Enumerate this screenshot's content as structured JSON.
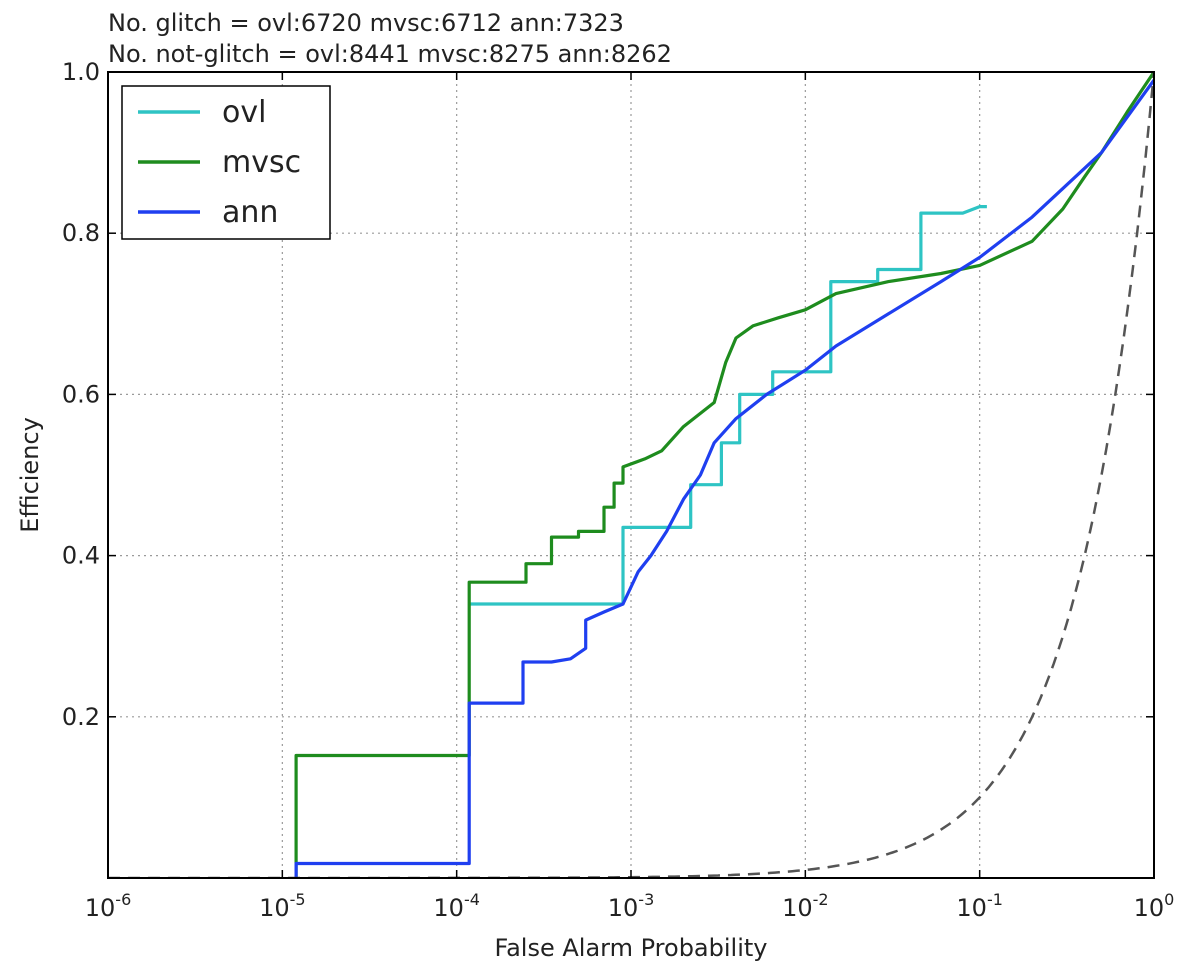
{
  "chart_data": {
    "type": "line",
    "title_lines": [
      "No. glitch = ovl:6720 mvsc:6712 ann:7323",
      "No. not-glitch = ovl:8441 mvsc:8275 ann:8262"
    ],
    "xlabel": "False Alarm Probability",
    "ylabel": "Efficiency",
    "xscale": "log",
    "xlim": [
      1e-06,
      1
    ],
    "ylim": [
      0,
      1
    ],
    "grid": true,
    "legend_position": "top-left",
    "x_ticks": [
      {
        "base": "10",
        "exp": "-6",
        "value": 1e-06
      },
      {
        "base": "10",
        "exp": "-5",
        "value": 1e-05
      },
      {
        "base": "10",
        "exp": "-4",
        "value": 0.0001
      },
      {
        "base": "10",
        "exp": "-3",
        "value": 0.001
      },
      {
        "base": "10",
        "exp": "-2",
        "value": 0.01
      },
      {
        "base": "10",
        "exp": "-1",
        "value": 0.1
      },
      {
        "base": "10",
        "exp": "0",
        "value": 1
      }
    ],
    "y_ticks": [
      {
        "label": "0.2",
        "value": 0.2
      },
      {
        "label": "0.4",
        "value": 0.4
      },
      {
        "label": "0.6",
        "value": 0.6
      },
      {
        "label": "0.8",
        "value": 0.8
      },
      {
        "label": "1.0",
        "value": 1.0
      }
    ],
    "series": [
      {
        "name": "ovl",
        "color": "#2ec4c4",
        "step": true,
        "points": [
          [
            0.000118,
            0.34
          ],
          [
            0.0009,
            0.34
          ],
          [
            0.0009,
            0.435
          ],
          [
            0.0022,
            0.435
          ],
          [
            0.0022,
            0.488
          ],
          [
            0.0033,
            0.488
          ],
          [
            0.0033,
            0.54
          ],
          [
            0.0042,
            0.54
          ],
          [
            0.0042,
            0.6
          ],
          [
            0.0065,
            0.6
          ],
          [
            0.0065,
            0.628
          ],
          [
            0.014,
            0.628
          ],
          [
            0.014,
            0.74
          ],
          [
            0.026,
            0.74
          ],
          [
            0.026,
            0.755
          ],
          [
            0.046,
            0.755
          ],
          [
            0.046,
            0.825
          ],
          [
            0.08,
            0.825
          ],
          [
            0.1,
            0.833
          ],
          [
            0.11,
            0.833
          ]
        ]
      },
      {
        "name": "mvsc",
        "color": "#1e8c1e",
        "step": true,
        "points": [
          [
            1.2e-05,
            0.0
          ],
          [
            1.2e-05,
            0.152
          ],
          [
            0.000118,
            0.152
          ],
          [
            0.000118,
            0.367
          ],
          [
            0.00025,
            0.367
          ],
          [
            0.00025,
            0.39
          ],
          [
            0.00035,
            0.39
          ],
          [
            0.00035,
            0.423
          ],
          [
            0.0005,
            0.423
          ],
          [
            0.0005,
            0.43
          ],
          [
            0.0007,
            0.43
          ],
          [
            0.0007,
            0.46
          ],
          [
            0.0008,
            0.46
          ],
          [
            0.0008,
            0.49
          ],
          [
            0.0009,
            0.49
          ],
          [
            0.0009,
            0.51
          ],
          [
            0.0012,
            0.52
          ],
          [
            0.0015,
            0.53
          ],
          [
            0.002,
            0.56
          ],
          [
            0.003,
            0.59
          ],
          [
            0.0035,
            0.64
          ],
          [
            0.004,
            0.67
          ],
          [
            0.005,
            0.685
          ],
          [
            0.007,
            0.695
          ],
          [
            0.01,
            0.705
          ],
          [
            0.015,
            0.725
          ],
          [
            0.03,
            0.74
          ],
          [
            0.06,
            0.75
          ],
          [
            0.1,
            0.76
          ],
          [
            0.2,
            0.79
          ],
          [
            0.3,
            0.83
          ],
          [
            0.4,
            0.87
          ],
          [
            0.5,
            0.9
          ],
          [
            0.7,
            0.95
          ],
          [
            1.0,
            1.0
          ]
        ]
      },
      {
        "name": "ann",
        "color": "#1f3ff0",
        "step": true,
        "points": [
          [
            1.2e-05,
            0.0
          ],
          [
            1.2e-05,
            0.018
          ],
          [
            0.000118,
            0.018
          ],
          [
            0.000118,
            0.217
          ],
          [
            0.00024,
            0.217
          ],
          [
            0.00024,
            0.268
          ],
          [
            0.00035,
            0.268
          ],
          [
            0.00045,
            0.272
          ],
          [
            0.00055,
            0.285
          ],
          [
            0.00055,
            0.32
          ],
          [
            0.0007,
            0.33
          ],
          [
            0.0009,
            0.34
          ],
          [
            0.0011,
            0.38
          ],
          [
            0.0013,
            0.4
          ],
          [
            0.0016,
            0.43
          ],
          [
            0.002,
            0.47
          ],
          [
            0.0025,
            0.5
          ],
          [
            0.003,
            0.54
          ],
          [
            0.004,
            0.57
          ],
          [
            0.006,
            0.6
          ],
          [
            0.01,
            0.63
          ],
          [
            0.015,
            0.66
          ],
          [
            0.03,
            0.7
          ],
          [
            0.06,
            0.74
          ],
          [
            0.1,
            0.77
          ],
          [
            0.2,
            0.82
          ],
          [
            0.5,
            0.9
          ],
          [
            1.0,
            0.99
          ]
        ]
      },
      {
        "name": "",
        "color": "#555555",
        "dashed": true,
        "function": "y = x"
      }
    ]
  }
}
